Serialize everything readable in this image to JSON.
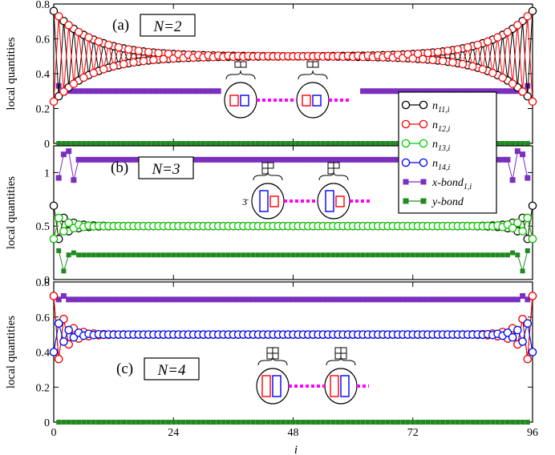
{
  "chart_data": [
    {
      "type": "line",
      "panel_label": "(a)",
      "annotation": "N=2",
      "ylabel": "local quantities",
      "xlim": [
        0,
        96
      ],
      "ylim": [
        0,
        0.8
      ],
      "yticks": [
        0,
        0.2,
        0.4,
        0.6,
        0.8
      ],
      "ytick_labels": [
        "0",
        "0.2",
        "0.4",
        "0.6",
        "0.8"
      ],
      "n_series": [
        {
          "name": "n11",
          "bulk": 0.5,
          "amp0": 0.26,
          "decay": 8.0,
          "phase": 0
        },
        {
          "name": "n12",
          "bulk": 0.5,
          "amp0": 0.26,
          "decay": 8.0,
          "phase": 1
        }
      ],
      "x_bond": {
        "value": 0.3,
        "edge": [
          0.33,
          0.29,
          0.3
        ],
        "gap": [
          33,
          62
        ]
      },
      "y_bond": {
        "value": 0.0
      },
      "inset": "two-site"
    },
    {
      "type": "line",
      "panel_label": "(b)",
      "annotation": "N=3",
      "ylabel": "local quantities",
      "xlim": [
        0,
        96
      ],
      "ylim": [
        0,
        1.25
      ],
      "yticks": [
        0,
        0.5,
        1
      ],
      "ytick_labels": [
        "0",
        "0.5",
        "1"
      ],
      "inset_prefix": "3̄",
      "n_series": [
        {
          "name": "n11",
          "bulk": 0.5,
          "amp0": 0.19,
          "decay": 2.2,
          "phase": 0
        },
        {
          "name": "n12",
          "bulk": 0.5,
          "amp0": 0.12,
          "decay": 2.2,
          "phase": 1
        },
        {
          "name": "n13",
          "bulk": 0.5,
          "amp0": 0.12,
          "decay": 2.2,
          "phase": 1
        }
      ],
      "x_bond": {
        "value": 1.12,
        "edge": [
          0.95,
          1.17,
          1.2,
          0.93
        ]
      },
      "y_bond": {
        "value": 0.23,
        "edge": [
          0.27,
          0.08,
          0.23,
          0.25
        ]
      },
      "inset": "three-site"
    },
    {
      "type": "line",
      "panel_label": "(c)",
      "annotation": "N=4",
      "ylabel": "local quantities",
      "xlabel": "i",
      "xlim": [
        0,
        96
      ],
      "ylim": [
        0,
        0.8
      ],
      "xticks": [
        0,
        24,
        48,
        72,
        96
      ],
      "xtick_labels": [
        "0",
        "24",
        "48",
        "72",
        "96"
      ],
      "yticks": [
        0,
        0.2,
        0.4,
        0.6,
        0.8
      ],
      "ytick_labels": [
        "0",
        "0.2",
        "0.4",
        "0.6",
        "0.8"
      ],
      "n_series": [
        {
          "name": "n11",
          "bulk": 0.5,
          "amp0": 0.22,
          "decay": 2.2,
          "phase": 0
        },
        {
          "name": "n12",
          "bulk": 0.5,
          "amp0": 0.22,
          "decay": 2.2,
          "phase": 2
        },
        {
          "name": "n13",
          "bulk": 0.5,
          "amp0": 0.1,
          "decay": 2.2,
          "phase": 1
        },
        {
          "name": "n14",
          "bulk": 0.5,
          "amp0": 0.1,
          "decay": 2.2,
          "phase": 3
        }
      ],
      "x_bond": {
        "value": 0.7,
        "edge": [
          0.7,
          0.72,
          0.7
        ]
      },
      "y_bond": {
        "value": 0.0
      },
      "inset": "four-site"
    }
  ],
  "legend": {
    "entries": [
      {
        "base": "n",
        "sub": "11,i",
        "color": "#000000",
        "marker": "circle-open"
      },
      {
        "base": "n",
        "sub": "12,i",
        "color": "#ff0000",
        "marker": "circle-open"
      },
      {
        "base": "n",
        "sub": "13,i",
        "color": "#00cc00",
        "marker": "circle-open"
      },
      {
        "base": "n",
        "sub": "14,i",
        "color": "#0000ff",
        "marker": "circle-open"
      },
      {
        "base": "x-bond",
        "sub": "1,i",
        "color": "#7b2fbe",
        "marker": "square-filled"
      },
      {
        "base": "y-bond",
        "sub": "",
        "color": "#208a20",
        "marker": "square-filled"
      }
    ]
  },
  "colors": {
    "n11": "#000000",
    "n12": "#ff0000",
    "n13": "#00cc00",
    "n14": "#0000ff",
    "x_bond": "#7b2fbe",
    "y_bond": "#208a20",
    "dotted_link": "#ff00ff"
  }
}
